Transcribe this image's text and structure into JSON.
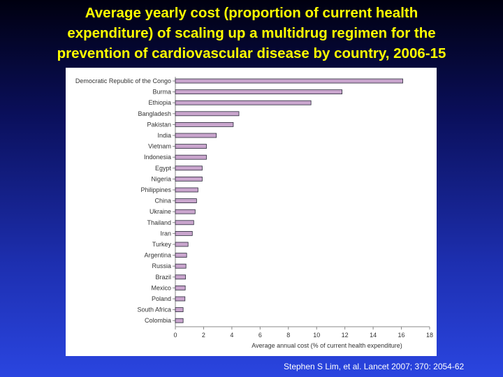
{
  "title_lines": [
    "Average yearly cost (proportion of current health",
    "expenditure) of scaling up a multidrug regimen for the",
    "prevention of cardiovascular disease by country, 2006-15"
  ],
  "citation": "Stephen S Lim, et al. Lancet 2007; 370: 2054-62",
  "colors": {
    "title": "#ffff00",
    "bar_fill": "#c9a5cd",
    "bar_stroke": "#2a2a3a",
    "axis": "#888888",
    "text": "#333333"
  },
  "chart_data": {
    "type": "bar",
    "orientation": "horizontal",
    "categories": [
      "Democratic Republic of the Congo",
      "Burma",
      "Ethiopia",
      "Bangladesh",
      "Pakistan",
      "India",
      "Vietnam",
      "Indonesia",
      "Egypt",
      "Nigeria",
      "Philippines",
      "China",
      "Ukraine",
      "Thailand",
      "Iran",
      "Turkey",
      "Argentina",
      "Russia",
      "Brazil",
      "Mexico",
      "Poland",
      "South Africa",
      "Colombia"
    ],
    "values": [
      16.1,
      11.8,
      9.6,
      4.5,
      4.1,
      2.9,
      2.2,
      2.2,
      1.9,
      1.9,
      1.6,
      1.5,
      1.4,
      1.3,
      1.2,
      0.9,
      0.8,
      0.75,
      0.72,
      0.7,
      0.68,
      0.55,
      0.55
    ],
    "x_ticks": [
      0,
      2,
      4,
      6,
      8,
      10,
      12,
      14,
      16,
      18
    ],
    "xlim": [
      0,
      18
    ],
    "xlabel": "Average annual cost (% of current health expenditure)",
    "ylabel": "",
    "grid": false,
    "legend": "none"
  }
}
